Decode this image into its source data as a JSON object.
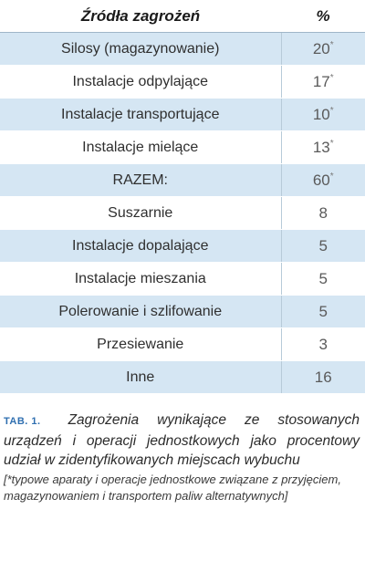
{
  "table": {
    "headers": {
      "source": "Źródła zagrożeń",
      "percent": "%"
    },
    "rows": [
      {
        "source": "Silosy (magazynowanie)",
        "value": "20",
        "mark": "*"
      },
      {
        "source": "Instalacje odpylające",
        "value": "17",
        "mark": "*"
      },
      {
        "source": "Instalacje transportujące",
        "value": "10",
        "mark": "*"
      },
      {
        "source": "Instalacje mielące",
        "value": "13",
        "mark": "*"
      },
      {
        "source": "RAZEM:",
        "value": "60",
        "mark": "*"
      },
      {
        "source": "Suszarnie",
        "value": "8",
        "mark": ""
      },
      {
        "source": "Instalacje dopalające",
        "value": "5",
        "mark": ""
      },
      {
        "source": "Instalacje mieszania",
        "value": "5",
        "mark": ""
      },
      {
        "source": "Polerowanie i szlifowanie",
        "value": "5",
        "mark": ""
      },
      {
        "source": "Przesiewanie",
        "value": "3",
        "mark": ""
      },
      {
        "source": "Inne",
        "value": "16",
        "mark": ""
      }
    ]
  },
  "caption": {
    "label": "TAB. 1.",
    "text": "Zagrożenia wynikające ze stosowanych urządzeń i operacji jednostkowych jako procentowy udział w zidentyfikowanych miejscach wybuchu",
    "footnote": "[*typowe aparaty i operacje jednostkowe związane z przyjęciem, magazynowaniem i transportem paliw alternatywnych]"
  },
  "colors": {
    "row_shade": "#d5e6f3",
    "label_accent": "#2f6fb0"
  }
}
